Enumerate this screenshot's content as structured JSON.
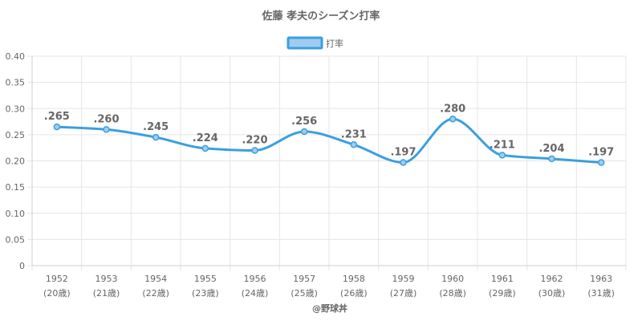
{
  "chart_data": {
    "type": "line",
    "title": "佐藤 孝夫のシーズン打率",
    "series": [
      {
        "name": "打率",
        "values": [
          0.265,
          0.26,
          0.245,
          0.224,
          0.22,
          0.256,
          0.231,
          0.197,
          0.28,
          0.211,
          0.204,
          0.197
        ],
        "data_labels": [
          ".265",
          ".260",
          ".245",
          ".224",
          ".220",
          ".256",
          ".231",
          ".197",
          ".280",
          ".211",
          ".204",
          ".197"
        ]
      }
    ],
    "categories": [
      "1952",
      "1953",
      "1954",
      "1955",
      "1956",
      "1957",
      "1958",
      "1959",
      "1960",
      "1961",
      "1962",
      "1963"
    ],
    "category_sublabels": [
      "(20歳)",
      "(21歳)",
      "(22歳)",
      "(23歳)",
      "(24歳)",
      "(25歳)",
      "(26歳)",
      "(27歳)",
      "(28歳)",
      "(29歳)",
      "(30歳)",
      "(31歳)"
    ],
    "ylim": [
      0,
      0.4
    ],
    "yticks": [
      "0",
      "0.05",
      "0.10",
      "0.15",
      "0.20",
      "0.25",
      "0.30",
      "0.35",
      "0.40"
    ],
    "grid": true,
    "legend_position": "top",
    "colors": {
      "line": "#3b9fe0",
      "legend_fill": "#9fcdf0",
      "grid": "#e5e5e5",
      "text": "#666666"
    }
  },
  "credit": "@野球丼"
}
